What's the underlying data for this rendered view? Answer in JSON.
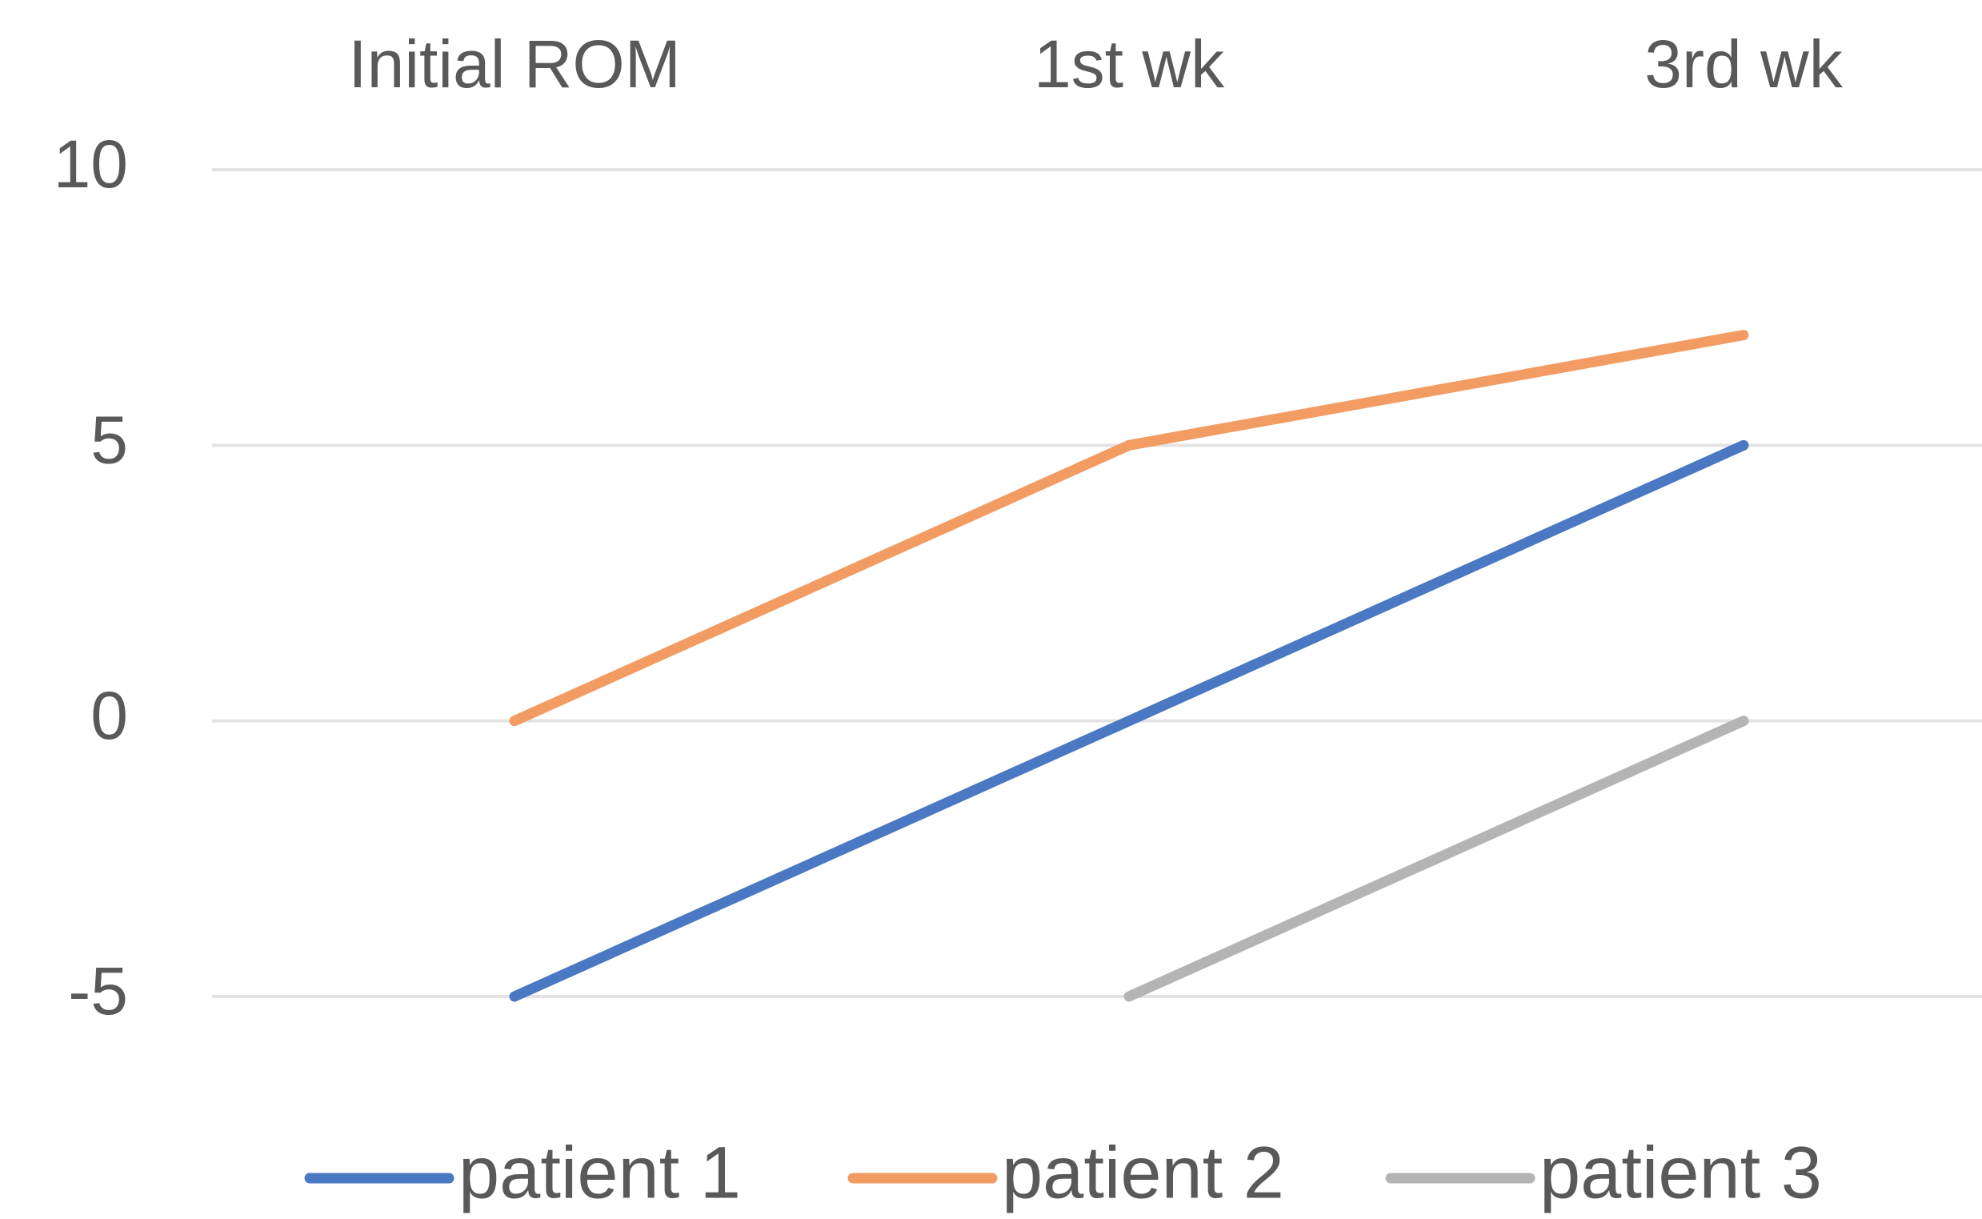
{
  "chart_data": {
    "type": "line",
    "categories": [
      "Initial ROM",
      "1st wk",
      "3rd wk"
    ],
    "series": [
      {
        "name": "patient 1",
        "color": "#4a78c2",
        "values": [
          -5,
          0,
          5
        ]
      },
      {
        "name": "patient 2",
        "color": "#f29b62",
        "values": [
          0,
          5,
          7
        ]
      },
      {
        "name": "patient 3",
        "color": "#b4b4b4",
        "values": [
          null,
          -5,
          0
        ]
      }
    ],
    "ylim": [
      -5,
      10
    ],
    "yticks": [
      -5,
      0,
      5,
      10
    ],
    "grid": true
  }
}
